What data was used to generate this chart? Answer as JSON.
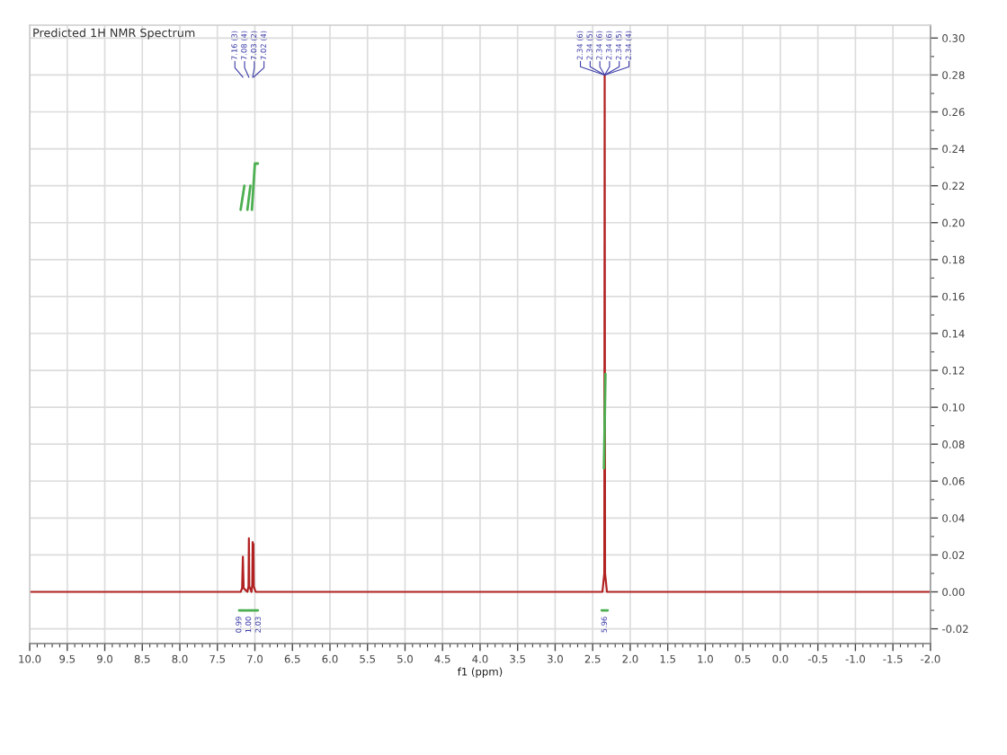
{
  "chart_data": {
    "type": "line",
    "title": "Predicted 1H NMR Spectrum",
    "xlabel": "f1 (ppm)",
    "xlim": [
      10.0,
      -2.0
    ],
    "xticks": [
      {
        "value": 10.0,
        "label": "10.0"
      },
      {
        "value": 9.5,
        "label": "9.5"
      },
      {
        "value": 9.0,
        "label": "9.0"
      },
      {
        "value": 8.5,
        "label": "8.5"
      },
      {
        "value": 8.0,
        "label": "8.0"
      },
      {
        "value": 7.5,
        "label": "7.5"
      },
      {
        "value": 7.0,
        "label": "7.0"
      },
      {
        "value": 6.5,
        "label": "6.5"
      },
      {
        "value": 6.0,
        "label": "6.0"
      },
      {
        "value": 5.5,
        "label": "5.5"
      },
      {
        "value": 5.0,
        "label": "5.0"
      },
      {
        "value": 4.5,
        "label": "4.5"
      },
      {
        "value": 4.0,
        "label": "4.0"
      },
      {
        "value": 3.5,
        "label": "3.5"
      },
      {
        "value": 3.0,
        "label": "3.0"
      },
      {
        "value": 2.5,
        "label": "2.5"
      },
      {
        "value": 2.0,
        "label": "2.0"
      },
      {
        "value": 1.5,
        "label": "1.5"
      },
      {
        "value": 1.0,
        "label": "1.0"
      },
      {
        "value": 0.5,
        "label": "0.5"
      },
      {
        "value": 0.0,
        "label": "0.0"
      },
      {
        "value": -0.5,
        "label": "-0.5"
      },
      {
        "value": -1.0,
        "label": "-1.0"
      },
      {
        "value": -1.5,
        "label": "-1.5"
      },
      {
        "value": -2.0,
        "label": "-2.0"
      }
    ],
    "ylim": [
      -0.028,
      0.307
    ],
    "yticks": [
      {
        "value": 0.3,
        "label": "0.30"
      },
      {
        "value": 0.28,
        "label": "0.28"
      },
      {
        "value": 0.26,
        "label": "0.26"
      },
      {
        "value": 0.24,
        "label": "0.24"
      },
      {
        "value": 0.22,
        "label": "0.22"
      },
      {
        "value": 0.2,
        "label": "0.20"
      },
      {
        "value": 0.18,
        "label": "0.18"
      },
      {
        "value": 0.16,
        "label": "0.16"
      },
      {
        "value": 0.14,
        "label": "0.14"
      },
      {
        "value": 0.12,
        "label": "0.12"
      },
      {
        "value": 0.1,
        "label": "0.10"
      },
      {
        "value": 0.08,
        "label": "0.08"
      },
      {
        "value": 0.06,
        "label": "0.06"
      },
      {
        "value": 0.04,
        "label": "0.04"
      },
      {
        "value": 0.02,
        "label": "0.02"
      },
      {
        "value": 0.0,
        "label": "0.00"
      },
      {
        "value": -0.02,
        "label": "-0.02"
      }
    ],
    "grid": true,
    "series": [
      {
        "color": "#b22222",
        "x": [
          10.0,
          7.19,
          7.17,
          7.16,
          7.15,
          7.1,
          7.085,
          7.08,
          7.075,
          7.045,
          7.035,
          7.03,
          7.025,
          7.02,
          7.015,
          6.99,
          2.37,
          2.345,
          2.34,
          2.335,
          2.31,
          -2.0
        ],
        "values": [
          0,
          0,
          0.002,
          0.019,
          0.002,
          0,
          0.003,
          0.029,
          0.003,
          0,
          0.004,
          0.027,
          0.008,
          0.026,
          0.003,
          0,
          0,
          0.01,
          0.28,
          0.01,
          0,
          0
        ]
      },
      {
        "color": "#4caf50",
        "x": [
          7.19,
          7.14,
          7.12,
          7.1,
          7.06,
          7.05,
          7.04,
          7.0,
          6.96,
          5.0,
          2.35,
          2.33
        ],
        "values": [
          0.207,
          0.22,
          null,
          0.207,
          0.22,
          null,
          0.207,
          0.232,
          0.232,
          null,
          0.067,
          0.118
        ]
      },
      {
        "color": "#4caf50",
        "x": [
          7.21,
          7.13,
          7.12,
          7.11,
          7.05,
          7.045,
          7.04,
          6.96,
          5.0,
          2.38,
          2.3
        ],
        "values": [
          -0.01,
          -0.01,
          null,
          -0.01,
          -0.01,
          null,
          -0.01,
          -0.01,
          null,
          -0.01,
          -0.01
        ]
      }
    ],
    "annotations": [
      {
        "text": "7.16 (3)",
        "x": 7.16
      },
      {
        "text": "7.08 (4)",
        "x": 7.08
      },
      {
        "text": "7.03 (2)",
        "x": 7.03
      },
      {
        "text": "7.02 (4)",
        "x": 7.02
      },
      {
        "text": "2.34 (6)",
        "x": 2.34,
        "y": 0.28
      },
      {
        "text": "2.34 (5)",
        "x": 2.34,
        "y": 0.28
      },
      {
        "text": "2.34 (6)",
        "x": 2.34,
        "y": 0.28
      },
      {
        "text": "2.34 (6)",
        "x": 2.34,
        "y": 0.28
      },
      {
        "text": "2.34 (5)",
        "x": 2.34,
        "y": 0.28
      },
      {
        "text": "2.34 (4)",
        "x": 2.34,
        "y": 0.28
      },
      {
        "text": "0.99",
        "x": 7.16,
        "y": -0.01
      },
      {
        "text": "1.00",
        "x": 7.08,
        "y": -0.01
      },
      {
        "text": "2.03",
        "x": 7.0,
        "y": -0.01
      },
      {
        "text": "5.96",
        "x": 2.34,
        "y": -0.01
      }
    ]
  }
}
